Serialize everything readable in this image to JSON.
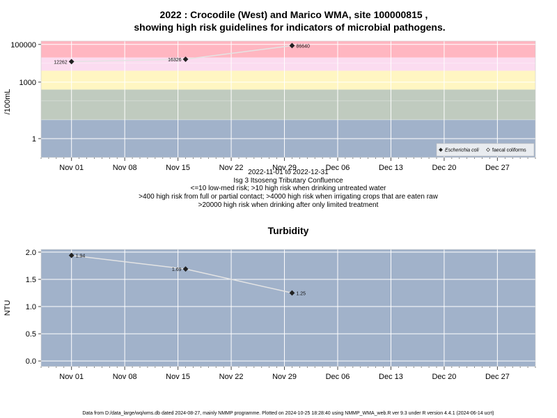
{
  "chart_data": [
    {
      "type": "line",
      "title_line1": "2022 : Crocodile (West) and Marico WMA, site 100000815 ,",
      "title_line2": "showing high risk guidelines for indicators of microbial pathogens.",
      "ylabel": "/100mL",
      "y_scale": "log",
      "ylim": [
        0.1,
        150000
      ],
      "y_ticks": [
        {
          "value": 1,
          "label": "1"
        },
        {
          "value": 1000,
          "label": "1000"
        },
        {
          "value": 100000,
          "label": "100000"
        }
      ],
      "x_ticks": [
        "Nov 01",
        "Nov 08",
        "Nov 15",
        "Nov 22",
        "Nov 29",
        "Dec 06",
        "Dec 13",
        "Dec 20",
        "Dec 27"
      ],
      "x_tick_dates": [
        "2022-11-01",
        "2022-11-08",
        "2022-11-15",
        "2022-11-22",
        "2022-11-29",
        "2022-12-06",
        "2022-12-13",
        "2022-12-20",
        "2022-12-27"
      ],
      "xlim": [
        "2022-10-28",
        "2023-01-01"
      ],
      "bands": [
        {
          "from": 20000,
          "to": 150000,
          "color": "#ffb6c1"
        },
        {
          "from": 4000,
          "to": 20000,
          "color": "#fbdcf0"
        },
        {
          "from": 400,
          "to": 4000,
          "color": "#fff6c2"
        },
        {
          "from": 10,
          "to": 400,
          "color": "#c0cbbf"
        },
        {
          "from": 0.1,
          "to": 10,
          "color": "#a1b2ca"
        }
      ],
      "grid": true,
      "legend_position": "bottom-right",
      "legend": [
        {
          "name": "Escherichia coli",
          "marker": "diamond-filled",
          "italic": true
        },
        {
          "name": "faecal coliforms",
          "marker": "diamond-open",
          "italic": false
        }
      ],
      "series": [
        {
          "name": "Escherichia coli",
          "points": [
            {
              "x": "2022-11-01",
              "y": 12262,
              "label": "12262"
            },
            {
              "x": "2022-11-16",
              "y": 16326,
              "label": "16326"
            },
            {
              "x": "2022-11-30",
              "y": 86640,
              "label": "86640"
            }
          ]
        }
      ],
      "subtitle_lines": [
        "2022-11-01 to 2022-12-31",
        "Isg 3 Itsoseng Tributary Confluence",
        "<=10 low-med risk; >10 high risk when drinking untreated water",
        ">400 high risk from full or partial contact; >4000 high risk when irrigating crops that are eaten raw",
        ">20000 high risk when drinking after only limited treatment"
      ]
    },
    {
      "type": "line",
      "title": "Turbidity",
      "ylabel": "NTU",
      "ylim": [
        -0.1,
        2.05
      ],
      "y_ticks": [
        {
          "value": 0.0,
          "label": "0.0"
        },
        {
          "value": 0.5,
          "label": "0.5"
        },
        {
          "value": 1.0,
          "label": "1.0"
        },
        {
          "value": 1.5,
          "label": "1.5"
        },
        {
          "value": 2.0,
          "label": "2.0"
        }
      ],
      "x_ticks": [
        "Nov 01",
        "Nov 08",
        "Nov 15",
        "Nov 22",
        "Nov 29",
        "Dec 06",
        "Dec 13",
        "Dec 20",
        "Dec 27"
      ],
      "x_tick_dates": [
        "2022-11-01",
        "2022-11-08",
        "2022-11-15",
        "2022-11-22",
        "2022-11-29",
        "2022-12-06",
        "2022-12-13",
        "2022-12-20",
        "2022-12-27"
      ],
      "xlim": [
        "2022-10-28",
        "2023-01-01"
      ],
      "background": "#a1b2ca",
      "grid": true,
      "series": [
        {
          "name": "",
          "points": [
            {
              "x": "2022-11-01",
              "y": 1.94,
              "label": "1.94"
            },
            {
              "x": "2022-11-16",
              "y": 1.69,
              "label": "1.69"
            },
            {
              "x": "2022-11-30",
              "y": 1.25,
              "label": "1.25"
            }
          ]
        }
      ]
    }
  ],
  "footer": "Data from D:/data_large/wq/wms.db dated 2024-08-27, mainly NMMP programme. Plotted on 2024-10-25 18:28:40 using NMMP_WMA_web.R ver 9.3 under R version 4.4.1 (2024-06-14 ucrt)"
}
